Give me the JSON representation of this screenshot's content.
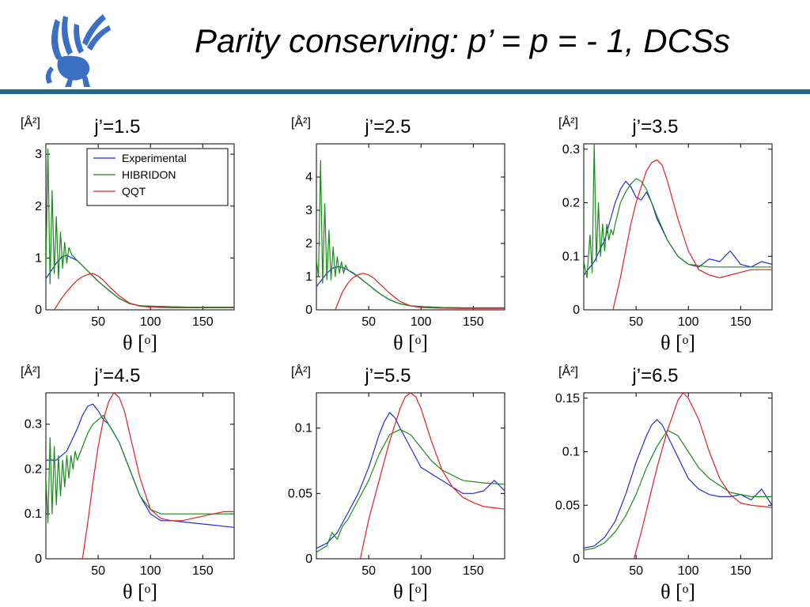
{
  "slide": {
    "title": "Parity conserving: p’ = p = - 1, DCSs"
  },
  "colors": {
    "experimental": "#1f2fd6",
    "hibridon": "#1a8a1a",
    "qqt": "#e02020",
    "rule": "#1f6a8c",
    "logo": "#3a6fc4"
  },
  "logo_icon": "griffin-logo-icon",
  "chart_data": [
    {
      "type": "line",
      "title": "j’=1.5",
      "ylabel": "[Å²]",
      "xlabel": "θ [ᵒ]",
      "xlim": [
        0,
        180
      ],
      "ylim": [
        0,
        3.2
      ],
      "xticks": [
        50,
        100,
        150
      ],
      "yticks": [
        0,
        1,
        2,
        3
      ],
      "ytick_labels": [
        "0",
        "1",
        "2",
        "3"
      ],
      "legend": [
        "Experimental",
        "HIBRIDON",
        "QQT"
      ],
      "legend_position": "top-right",
      "series": [
        {
          "name": "Experimental",
          "x": [
            0,
            5,
            10,
            15,
            20,
            25,
            30,
            40,
            50,
            60,
            70,
            80,
            90,
            100,
            120,
            140,
            160,
            180
          ],
          "y": [
            0.6,
            0.75,
            0.9,
            1.02,
            1.05,
            1.0,
            0.95,
            0.75,
            0.55,
            0.38,
            0.22,
            0.12,
            0.08,
            0.07,
            0.06,
            0.05,
            0.05,
            0.05
          ]
        },
        {
          "name": "HIBRIDON",
          "x": [
            0,
            2,
            4,
            6,
            8,
            10,
            12,
            14,
            16,
            18,
            20,
            22,
            25,
            30,
            40,
            50,
            60,
            70,
            80,
            90,
            100,
            120,
            140,
            160,
            180
          ],
          "y": [
            0.8,
            3.1,
            0.5,
            2.3,
            0.7,
            1.8,
            0.6,
            1.5,
            0.8,
            1.3,
            0.9,
            1.2,
            1.05,
            0.95,
            0.75,
            0.55,
            0.38,
            0.22,
            0.12,
            0.08,
            0.07,
            0.06,
            0.05,
            0.05,
            0.05
          ]
        },
        {
          "name": "QQT",
          "x": [
            8,
            15,
            20,
            25,
            30,
            35,
            40,
            45,
            50,
            55,
            60,
            70,
            80,
            90,
            100,
            120,
            140,
            160,
            180
          ],
          "y": [
            0.0,
            0.22,
            0.35,
            0.47,
            0.57,
            0.64,
            0.68,
            0.7,
            0.65,
            0.57,
            0.46,
            0.27,
            0.13,
            0.07,
            0.05,
            0.04,
            0.04,
            0.04,
            0.04
          ]
        }
      ]
    },
    {
      "type": "line",
      "title": "j’=2.5",
      "ylabel": "[Å²]",
      "xlabel": "θ [ᵒ]",
      "xlim": [
        0,
        180
      ],
      "ylim": [
        0,
        5.0
      ],
      "xticks": [
        50,
        100,
        150
      ],
      "yticks": [
        0,
        1,
        2,
        3,
        4
      ],
      "ytick_labels": [
        "0",
        "1",
        "2",
        "3",
        "4"
      ],
      "series": [
        {
          "name": "Experimental",
          "x": [
            0,
            5,
            10,
            15,
            20,
            25,
            30,
            40,
            50,
            60,
            70,
            80,
            90,
            100,
            120,
            140,
            160,
            180
          ],
          "y": [
            0.7,
            0.9,
            1.1,
            1.25,
            1.3,
            1.28,
            1.2,
            1.0,
            0.75,
            0.5,
            0.3,
            0.18,
            0.12,
            0.1,
            0.07,
            0.06,
            0.06,
            0.06
          ]
        },
        {
          "name": "HIBRIDON",
          "x": [
            0,
            2,
            4,
            6,
            8,
            10,
            12,
            14,
            16,
            18,
            20,
            22,
            24,
            26,
            28,
            30,
            35,
            40,
            50,
            60,
            70,
            80,
            90,
            100,
            120,
            140,
            160,
            180
          ],
          "y": [
            1.5,
            1.0,
            4.5,
            0.8,
            3.2,
            0.9,
            2.4,
            0.9,
            1.9,
            1.0,
            1.6,
            1.1,
            1.45,
            1.1,
            1.35,
            1.2,
            1.12,
            1.0,
            0.75,
            0.5,
            0.3,
            0.18,
            0.12,
            0.1,
            0.07,
            0.06,
            0.06,
            0.06
          ]
        },
        {
          "name": "QQT",
          "x": [
            18,
            25,
            30,
            35,
            40,
            45,
            50,
            55,
            60,
            70,
            80,
            90,
            100,
            120,
            140,
            160,
            180
          ],
          "y": [
            0.0,
            0.55,
            0.8,
            0.97,
            1.06,
            1.1,
            1.05,
            0.95,
            0.8,
            0.5,
            0.25,
            0.12,
            0.07,
            0.05,
            0.04,
            0.04,
            0.04
          ]
        }
      ]
    },
    {
      "type": "line",
      "title": "j’=3.5",
      "ylabel": "[Å²]",
      "xlabel": "θ [ᵒ]",
      "xlim": [
        0,
        180
      ],
      "ylim": [
        0,
        0.31
      ],
      "xticks": [
        50,
        100,
        150
      ],
      "yticks": [
        0,
        0.1,
        0.2,
        0.3
      ],
      "ytick_labels": [
        "0",
        "0.1",
        "0.2",
        "0.3"
      ],
      "series": [
        {
          "name": "Experimental",
          "x": [
            0,
            10,
            20,
            30,
            35,
            40,
            45,
            50,
            55,
            60,
            65,
            70,
            80,
            90,
            100,
            110,
            120,
            130,
            140,
            150,
            160,
            170,
            180
          ],
          "y": [
            0.065,
            0.09,
            0.13,
            0.2,
            0.225,
            0.24,
            0.23,
            0.21,
            0.205,
            0.22,
            0.2,
            0.17,
            0.13,
            0.1,
            0.085,
            0.08,
            0.095,
            0.09,
            0.11,
            0.085,
            0.08,
            0.09,
            0.085
          ]
        },
        {
          "name": "HIBRIDON",
          "x": [
            0,
            3,
            6,
            8,
            10,
            12,
            14,
            16,
            18,
            20,
            22,
            24,
            26,
            28,
            30,
            35,
            40,
            45,
            50,
            55,
            60,
            65,
            70,
            80,
            90,
            100,
            120,
            140,
            160,
            180
          ],
          "y": [
            0.09,
            0.06,
            0.14,
            0.07,
            0.31,
            0.09,
            0.2,
            0.1,
            0.16,
            0.11,
            0.16,
            0.13,
            0.15,
            0.14,
            0.16,
            0.2,
            0.22,
            0.235,
            0.245,
            0.24,
            0.225,
            0.2,
            0.175,
            0.13,
            0.1,
            0.085,
            0.08,
            0.08,
            0.08,
            0.08
          ]
        },
        {
          "name": "QQT",
          "x": [
            28,
            35,
            40,
            45,
            50,
            55,
            60,
            65,
            70,
            75,
            80,
            90,
            100,
            110,
            120,
            130,
            140,
            150,
            160,
            170,
            180
          ],
          "y": [
            0.0,
            0.06,
            0.11,
            0.16,
            0.2,
            0.23,
            0.26,
            0.275,
            0.28,
            0.27,
            0.24,
            0.17,
            0.11,
            0.075,
            0.065,
            0.06,
            0.065,
            0.07,
            0.075,
            0.075,
            0.075
          ]
        }
      ]
    },
    {
      "type": "line",
      "title": "j’=4.5",
      "ylabel": "[Å²]",
      "xlabel": "θ [ᵒ]",
      "xlim": [
        0,
        180
      ],
      "ylim": [
        0,
        0.37
      ],
      "xticks": [
        50,
        100,
        150
      ],
      "yticks": [
        0,
        0.1,
        0.2,
        0.3
      ],
      "ytick_labels": [
        "0",
        "0.1",
        "0.2",
        "0.3"
      ],
      "series": [
        {
          "name": "Experimental",
          "x": [
            0,
            10,
            20,
            30,
            35,
            40,
            45,
            50,
            55,
            60,
            70,
            80,
            90,
            100,
            110,
            120,
            140,
            160,
            180
          ],
          "y": [
            0.22,
            0.22,
            0.24,
            0.29,
            0.32,
            0.34,
            0.345,
            0.33,
            0.31,
            0.3,
            0.26,
            0.2,
            0.14,
            0.1,
            0.085,
            0.085,
            0.08,
            0.075,
            0.07
          ]
        },
        {
          "name": "HIBRIDON",
          "x": [
            0,
            2,
            4,
            6,
            8,
            10,
            12,
            14,
            16,
            18,
            20,
            22,
            24,
            26,
            28,
            30,
            35,
            40,
            45,
            50,
            55,
            60,
            70,
            80,
            90,
            100,
            110,
            120,
            140,
            160,
            180
          ],
          "y": [
            0.18,
            0.08,
            0.27,
            0.1,
            0.25,
            0.12,
            0.23,
            0.14,
            0.22,
            0.16,
            0.23,
            0.18,
            0.23,
            0.2,
            0.24,
            0.22,
            0.25,
            0.28,
            0.3,
            0.31,
            0.32,
            0.3,
            0.26,
            0.2,
            0.14,
            0.11,
            0.1,
            0.1,
            0.1,
            0.1,
            0.1
          ]
        },
        {
          "name": "QQT",
          "x": [
            35,
            40,
            45,
            50,
            55,
            60,
            65,
            70,
            75,
            80,
            90,
            100,
            110,
            120,
            130,
            140,
            150,
            160,
            170,
            180
          ],
          "y": [
            0.0,
            0.08,
            0.17,
            0.25,
            0.31,
            0.35,
            0.37,
            0.36,
            0.33,
            0.28,
            0.18,
            0.11,
            0.09,
            0.085,
            0.085,
            0.09,
            0.095,
            0.1,
            0.105,
            0.105
          ]
        }
      ]
    },
    {
      "type": "line",
      "title": "j’=5.5",
      "ylabel": "[Å²]",
      "xlabel": "θ [ᵒ]",
      "xlim": [
        0,
        180
      ],
      "ylim": [
        0,
        0.127
      ],
      "xticks": [
        50,
        100,
        150
      ],
      "yticks": [
        0,
        0.05,
        0.1
      ],
      "ytick_labels": [
        "0",
        "0.05",
        "0.1"
      ],
      "series": [
        {
          "name": "Experimental",
          "x": [
            0,
            10,
            20,
            30,
            40,
            50,
            60,
            65,
            70,
            75,
            80,
            90,
            100,
            110,
            120,
            130,
            140,
            150,
            160,
            170,
            180
          ],
          "y": [
            0.008,
            0.012,
            0.02,
            0.035,
            0.05,
            0.07,
            0.095,
            0.105,
            0.112,
            0.108,
            0.1,
            0.085,
            0.07,
            0.065,
            0.06,
            0.055,
            0.05,
            0.05,
            0.052,
            0.06,
            0.052
          ]
        },
        {
          "name": "HIBRIDON",
          "x": [
            0,
            10,
            15,
            20,
            25,
            30,
            40,
            50,
            60,
            70,
            80,
            90,
            100,
            110,
            120,
            140,
            160,
            180
          ],
          "y": [
            0.005,
            0.01,
            0.02,
            0.015,
            0.025,
            0.03,
            0.045,
            0.06,
            0.08,
            0.095,
            0.099,
            0.095,
            0.085,
            0.075,
            0.068,
            0.06,
            0.058,
            0.057
          ]
        },
        {
          "name": "QQT",
          "x": [
            42,
            50,
            60,
            70,
            80,
            85,
            90,
            95,
            100,
            110,
            120,
            130,
            140,
            150,
            160,
            170,
            180
          ],
          "y": [
            0.0,
            0.03,
            0.06,
            0.09,
            0.115,
            0.124,
            0.127,
            0.124,
            0.115,
            0.09,
            0.068,
            0.055,
            0.047,
            0.043,
            0.04,
            0.039,
            0.038
          ]
        }
      ]
    },
    {
      "type": "line",
      "title": "j’=6.5",
      "ylabel": "[Å²]",
      "xlabel": "θ [ᵒ]",
      "xlim": [
        0,
        180
      ],
      "ylim": [
        0,
        0.155
      ],
      "xticks": [
        50,
        100,
        150
      ],
      "yticks": [
        0,
        0.05,
        0.1,
        0.15
      ],
      "ytick_labels": [
        "0",
        "0.05",
        "0.1",
        "0.15"
      ],
      "series": [
        {
          "name": "Experimental",
          "x": [
            0,
            10,
            20,
            30,
            40,
            50,
            60,
            65,
            70,
            75,
            80,
            90,
            100,
            110,
            120,
            130,
            140,
            150,
            160,
            170,
            180
          ],
          "y": [
            0.01,
            0.012,
            0.02,
            0.035,
            0.06,
            0.09,
            0.115,
            0.125,
            0.13,
            0.125,
            0.115,
            0.095,
            0.075,
            0.065,
            0.06,
            0.058,
            0.058,
            0.06,
            0.055,
            0.065,
            0.05
          ]
        },
        {
          "name": "HIBRIDON",
          "x": [
            0,
            10,
            20,
            30,
            40,
            50,
            60,
            70,
            80,
            90,
            100,
            110,
            120,
            140,
            160,
            180
          ],
          "y": [
            0.008,
            0.01,
            0.015,
            0.025,
            0.04,
            0.06,
            0.085,
            0.105,
            0.12,
            0.115,
            0.1,
            0.085,
            0.075,
            0.062,
            0.058,
            0.058
          ]
        },
        {
          "name": "QQT",
          "x": [
            48,
            55,
            60,
            70,
            80,
            90,
            95,
            100,
            110,
            120,
            130,
            140,
            150,
            160,
            170,
            180
          ],
          "y": [
            0.0,
            0.025,
            0.045,
            0.085,
            0.12,
            0.148,
            0.155,
            0.15,
            0.13,
            0.1,
            0.075,
            0.06,
            0.052,
            0.05,
            0.049,
            0.048
          ]
        }
      ]
    }
  ]
}
